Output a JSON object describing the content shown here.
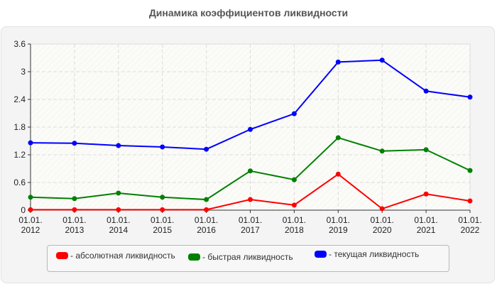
{
  "chart_data": {
    "type": "line",
    "title": "Динамика коэффициентов ликвидности",
    "xlabel": "",
    "ylabel": "",
    "categories": [
      "01.01.\n2012",
      "01.01.\n2013",
      "01.01.\n2014",
      "01.01.\n2015",
      "01.01.\n2016",
      "01.01.\n2017",
      "01.01.\n2018",
      "01.01.\n2019",
      "01.01.\n2020",
      "01.01.\n2021",
      "01.01.\n2022"
    ],
    "category_lines": [
      [
        "01.01.",
        "2012"
      ],
      [
        "01.01.",
        "2013"
      ],
      [
        "01.01.",
        "2014"
      ],
      [
        "01.01.",
        "2015"
      ],
      [
        "01.01.",
        "2016"
      ],
      [
        "01.01.",
        "2017"
      ],
      [
        "01.01.",
        "2018"
      ],
      [
        "01.01.",
        "2019"
      ],
      [
        "01.01.",
        "2020"
      ],
      [
        "01.01.",
        "2021"
      ],
      [
        "01.01.",
        "2022"
      ]
    ],
    "ylim": [
      0,
      3.6
    ],
    "yticks": [
      "0",
      "0.6",
      "1.2",
      "1.8",
      "2.4",
      "3",
      "3.6"
    ],
    "ytick_values": [
      0,
      0.6,
      1.2,
      1.8,
      2.4,
      3.0,
      3.6
    ],
    "grid": true,
    "legend_position": "bottom",
    "series": [
      {
        "name": "- абсолютная ликвидность",
        "color": "#ff0000",
        "values": [
          0.01,
          0.01,
          0.01,
          0.01,
          0.01,
          0.23,
          0.11,
          0.78,
          0.03,
          0.35,
          0.2
        ]
      },
      {
        "name": "- быстрая ликвидность",
        "color": "#008000",
        "values": [
          0.28,
          0.25,
          0.37,
          0.28,
          0.23,
          0.85,
          0.66,
          1.57,
          1.28,
          1.31,
          0.86
        ]
      },
      {
        "name": "- текущая ликвидность",
        "color": "#0000ff",
        "values": [
          1.46,
          1.45,
          1.4,
          1.37,
          1.32,
          1.75,
          2.09,
          3.21,
          3.25,
          2.58,
          2.45
        ]
      }
    ]
  },
  "header": {
    "title": "Динамика коэффициентов ликвидности"
  },
  "legend": {
    "items": [
      {
        "label": "- абсолютная ликвидность",
        "color": "#ff0000"
      },
      {
        "label": "- быстрая ликвидность",
        "color": "#008000"
      },
      {
        "label": "- текущая ликвидность",
        "color": "#0000ff"
      }
    ]
  }
}
